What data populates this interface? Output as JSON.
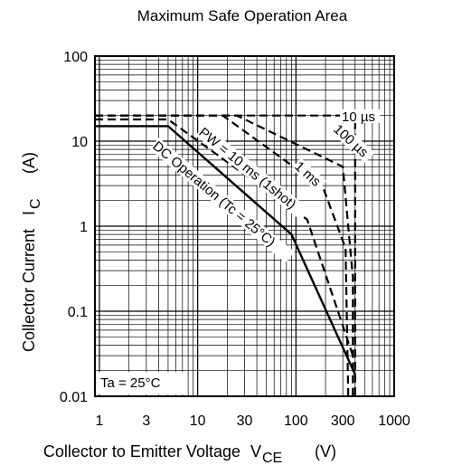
{
  "chart_data": {
    "type": "line",
    "title": "Maximum Safe Operation Area",
    "xlabel": "Collector to Emitter Voltage",
    "xlabel_symbol": "V",
    "xlabel_sub": "CE",
    "xlabel_unit": "(V)",
    "ylabel": "Collector Current",
    "ylabel_symbol": "I",
    "ylabel_sub": "C",
    "ylabel_unit": "(A)",
    "xscale": "log",
    "yscale": "log",
    "xlim": [
      0.9,
      1000
    ],
    "ylim": [
      0.01,
      100
    ],
    "grid": true,
    "x_ticks": [
      1,
      3,
      10,
      30,
      100,
      300,
      1000
    ],
    "x_tick_labels": [
      "1",
      "3",
      "10",
      "30",
      "100",
      "300",
      "1000"
    ],
    "y_ticks": [
      0.01,
      0.1,
      1,
      10,
      100
    ],
    "y_tick_labels": [
      "0.01",
      "0.1",
      "1",
      "10",
      "100"
    ],
    "series": [
      {
        "name": "DC Operation (Tc = 25°C)",
        "style": "solid",
        "x": [
          0.9,
          5,
          90,
          400
        ],
        "y": [
          15,
          15,
          0.8,
          0.018
        ]
      },
      {
        "name": "PW = 10 ms (1shot)",
        "style": "dashed",
        "x": [
          0.9,
          5,
          130,
          380
        ],
        "y": [
          18,
          18,
          1.2,
          0.03
        ]
      },
      {
        "name": "1 ms",
        "style": "dashed",
        "x": [
          0.9,
          18,
          190,
          320,
          340,
          340
        ],
        "y": [
          20,
          20,
          2.8,
          0.55,
          0.012,
          0.01
        ]
      },
      {
        "name": "100 µs",
        "style": "dashed",
        "x": [
          0.9,
          25,
          300,
          380,
          380
        ],
        "y": [
          20,
          20,
          5,
          0.25,
          0.01
        ]
      },
      {
        "name": "10 µs",
        "style": "dashed",
        "x": [
          0.9,
          400,
          400
        ],
        "y": [
          20,
          20,
          0.01
        ]
      }
    ],
    "annotations": [
      {
        "text": "10 µs"
      },
      {
        "text": "100 µs"
      },
      {
        "text": "1 ms"
      },
      {
        "text": "PW = 10 ms (1shot)"
      },
      {
        "text": "DC Operation (Tc = 25°C)"
      },
      {
        "text": "Ta = 25°C"
      }
    ]
  }
}
